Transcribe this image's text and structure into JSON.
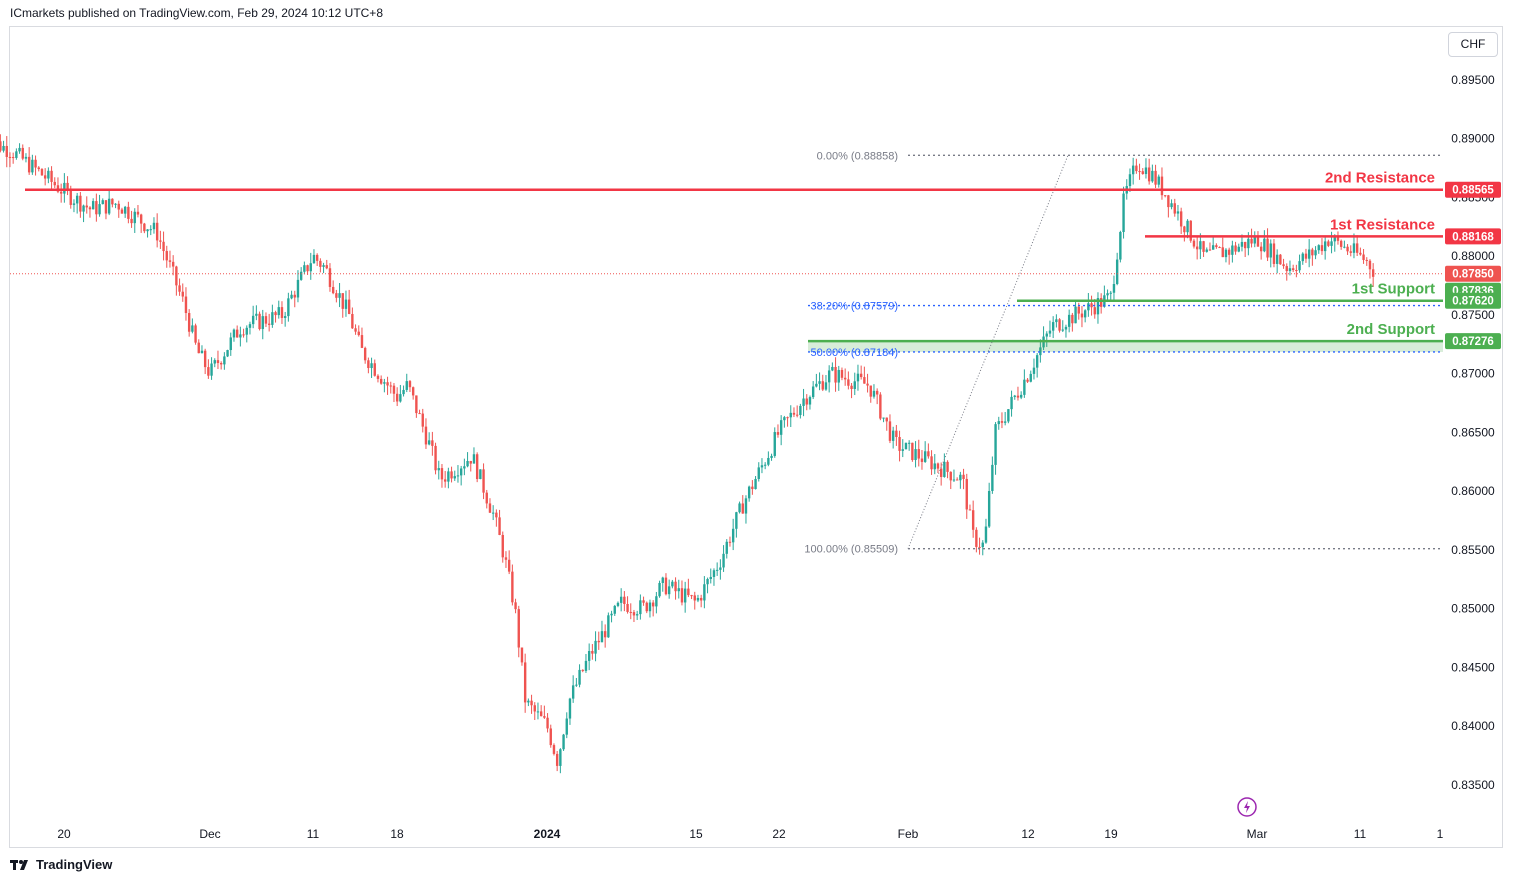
{
  "header": {
    "published": "ICmarkets published on TradingView.com, Feb 29, 2024 10:12 UTC+8"
  },
  "currency_button": "CHF",
  "footer": {
    "brand": "TradingView"
  },
  "colors": {
    "up": "#26a69a",
    "down": "#ef5350",
    "resistance": "#f23645",
    "support": "#4caf50",
    "fib": "#2962ff",
    "grid": "#787b86",
    "text": "#131722"
  },
  "chart_data": {
    "type": "candlestick",
    "symbol_currency": "CHF",
    "ylim": [
      0.832,
      0.8995
    ],
    "y_ticks": [
      "0.89500",
      "0.89000",
      "0.88500",
      "0.88000",
      "0.87500",
      "0.87000",
      "0.86500",
      "0.86000",
      "0.85500",
      "0.85000",
      "0.84500",
      "0.84000",
      "0.83500"
    ],
    "y_tick_values": [
      0.895,
      0.89,
      0.885,
      0.88,
      0.875,
      0.87,
      0.865,
      0.86,
      0.855,
      0.85,
      0.845,
      0.84,
      0.835
    ],
    "x_ticks": [
      {
        "label": "20",
        "date": "2023-11-20"
      },
      {
        "label": "Dec",
        "date": "2023-12-01"
      },
      {
        "label": "11",
        "date": "2023-12-11"
      },
      {
        "label": "18",
        "date": "2023-12-18"
      },
      {
        "label": "2024",
        "date": "2024-01-01"
      },
      {
        "label": "15",
        "date": "2024-01-15"
      },
      {
        "label": "22",
        "date": "2024-01-22"
      },
      {
        "label": "Feb",
        "date": "2024-02-01"
      },
      {
        "label": "12",
        "date": "2024-02-12"
      },
      {
        "label": "19",
        "date": "2024-02-19"
      },
      {
        "label": "Mar",
        "date": "2024-03-01"
      },
      {
        "label": "11",
        "date": "2024-03-11"
      },
      {
        "label": "1",
        "date": "2024-04-01"
      }
    ],
    "price_path": [
      [
        "2023-11-14",
        0.89
      ],
      [
        "2023-11-16",
        0.889
      ],
      [
        "2023-11-20",
        0.8855
      ],
      [
        "2023-11-22",
        0.884
      ],
      [
        "2023-11-24",
        0.8845
      ],
      [
        "2023-11-27",
        0.882
      ],
      [
        "2023-11-29",
        0.876
      ],
      [
        "2023-11-30",
        0.872
      ],
      [
        "2023-12-01",
        0.87
      ],
      [
        "2023-12-04",
        0.874
      ],
      [
        "2023-12-06",
        0.8745
      ],
      [
        "2023-12-08",
        0.875
      ],
      [
        "2023-12-11",
        0.88
      ],
      [
        "2023-12-12",
        0.879
      ],
      [
        "2023-12-14",
        0.875
      ],
      [
        "2023-12-15",
        0.872
      ],
      [
        "2023-12-18",
        0.868
      ],
      [
        "2023-12-19",
        0.869
      ],
      [
        "2023-12-21",
        0.864
      ],
      [
        "2023-12-22",
        0.861
      ],
      [
        "2023-12-25",
        0.863
      ],
      [
        "2023-12-27",
        0.858
      ],
      [
        "2023-12-28",
        0.8545
      ],
      [
        "2023-12-29",
        0.85
      ],
      [
        "2023-12-30",
        0.842
      ],
      [
        "2024-01-01",
        0.84
      ],
      [
        "2024-01-02",
        0.837
      ],
      [
        "2024-01-03",
        0.842
      ],
      [
        "2024-01-05",
        0.846
      ],
      [
        "2024-01-08",
        0.8505
      ],
      [
        "2024-01-10",
        0.85
      ],
      [
        "2024-01-12",
        0.852
      ],
      [
        "2024-01-15",
        0.8505
      ],
      [
        "2024-01-17",
        0.854
      ],
      [
        "2024-01-19",
        0.859
      ],
      [
        "2024-01-22",
        0.865
      ],
      [
        "2024-01-24",
        0.868
      ],
      [
        "2024-01-26",
        0.87
      ],
      [
        "2024-01-29",
        0.869
      ],
      [
        "2024-01-31",
        0.864
      ],
      [
        "2024-02-02",
        0.863
      ],
      [
        "2024-02-04",
        0.862
      ],
      [
        "2024-02-06",
        0.861
      ],
      [
        "2024-02-07",
        0.856
      ],
      [
        "2024-02-08",
        0.8553
      ],
      [
        "2024-02-09",
        0.865
      ],
      [
        "2024-02-12",
        0.87
      ],
      [
        "2024-02-14",
        0.874
      ],
      [
        "2024-02-16",
        0.875
      ],
      [
        "2024-02-19",
        0.8765
      ],
      [
        "2024-02-20",
        0.885
      ],
      [
        "2024-02-21",
        0.888
      ],
      [
        "2024-02-22",
        0.887
      ],
      [
        "2024-02-23",
        0.8855
      ],
      [
        "2024-02-26",
        0.88
      ],
      [
        "2024-02-28",
        0.8805
      ],
      [
        "2024-03-01",
        0.8815
      ],
      [
        "2024-03-04",
        0.879
      ],
      [
        "2024-03-06",
        0.88
      ],
      [
        "2024-03-08",
        0.8815
      ],
      [
        "2024-03-11",
        0.88
      ],
      [
        "2024-03-13",
        0.8795
      ],
      [
        "2024-03-15",
        0.8786
      ]
    ],
    "horizontal_levels": [
      {
        "label": "2nd Resistance",
        "price": 0.88565,
        "price_label": "0.88565",
        "kind": "resistance"
      },
      {
        "label": "1st Resistance",
        "price": 0.88168,
        "price_label": "0.88168",
        "kind": "resistance"
      },
      {
        "label": "1st Support",
        "price": 0.8762,
        "price_label": "0.87620",
        "kind": "support"
      },
      {
        "label": "2nd Support",
        "price": 0.87276,
        "price_label": "0.87276",
        "kind": "support"
      }
    ],
    "current_price": {
      "price": 0.8785,
      "label": "0.87850"
    },
    "extra_price_tag": {
      "price": 0.87836,
      "label": "0.87836"
    },
    "fibonacci": [
      {
        "label": "0.00% (0.88858)",
        "price": 0.88858
      },
      {
        "label": "38.20% (0.87579)",
        "price": 0.87579
      },
      {
        "label": "50.00% (0.87184)",
        "price": 0.87184
      },
      {
        "label": "100.00% (0.85509)",
        "price": 0.85509
      }
    ]
  }
}
